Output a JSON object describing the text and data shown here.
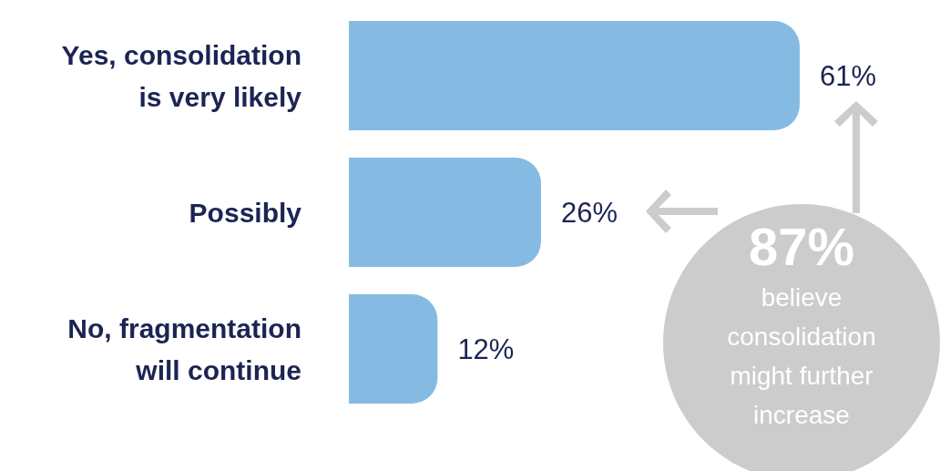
{
  "chart_data": {
    "type": "bar",
    "orientation": "horizontal",
    "categories": [
      "Yes, consolidation is very likely",
      "Possibly",
      "No, fragmentation will continue"
    ],
    "values": [
      61,
      26,
      12
    ],
    "value_labels": [
      "61%",
      "26%",
      "12%"
    ],
    "color": "#85bbe2",
    "tick_labels": "y",
    "annotations": [
      "87%",
      "believe consolidation might further increase"
    ]
  }
}
